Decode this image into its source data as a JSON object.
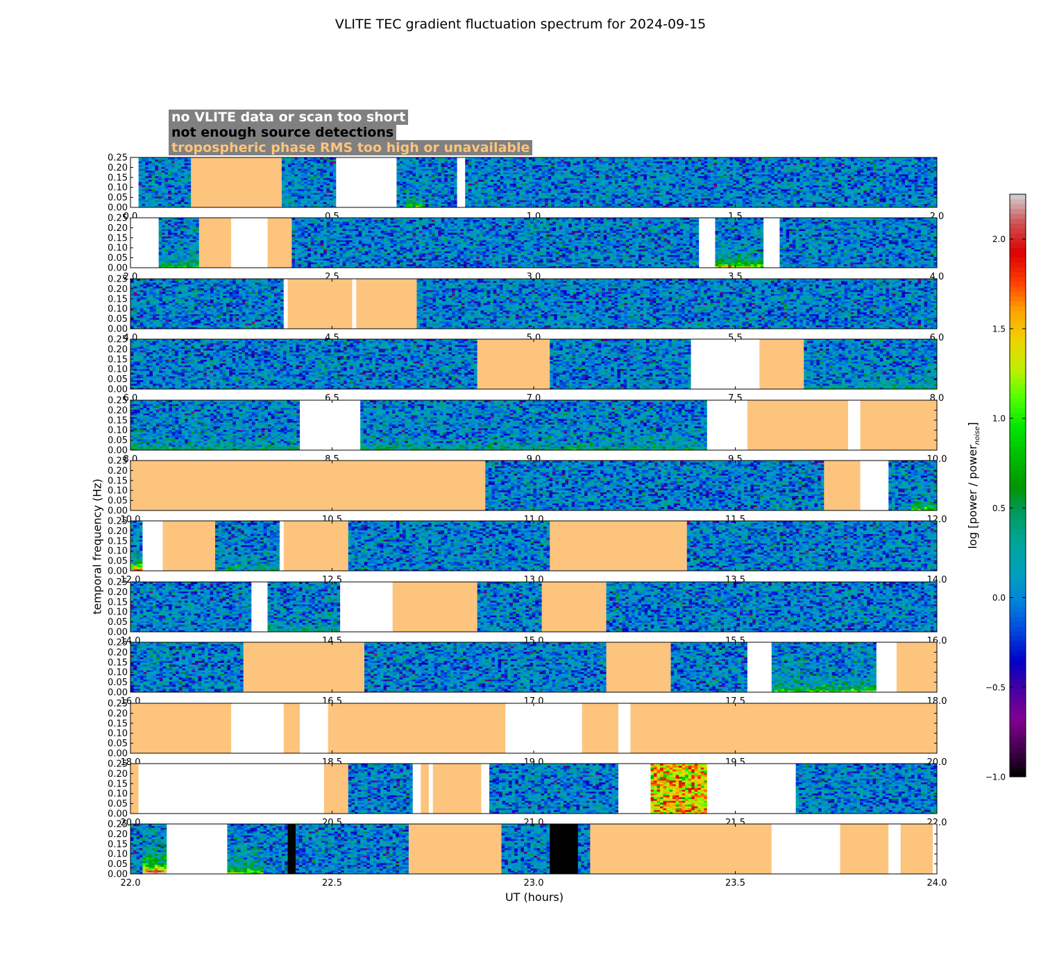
{
  "title": "VLITE TEC gradient fluctuation spectrum for 2024-09-15",
  "legend": [
    {
      "text": "no VLITE data or scan too short",
      "color": "#ffffff"
    },
    {
      "text": "not enough source detections",
      "color": "#000000"
    },
    {
      "text": "tropospheric phase RMS too high or unavailable",
      "color": "#fdc47d"
    }
  ],
  "colors": {
    "troposphere_flag": "#fdc47d",
    "no_data": "#ffffff",
    "few_detections": "#000000",
    "legend_box": "#808080"
  },
  "chart_data": {
    "type": "heatmap",
    "xlabel": "UT (hours)",
    "ylabel": "temporal frequency (Hz)",
    "colorbar_label": "log [power / power",
    "colorbar_subscript": "noise",
    "colorbar_suffix": "]",
    "colorbar_range": [
      -1.0,
      2.25
    ],
    "colorbar_ticks": [
      "−1.0",
      "−0.5",
      "0.0",
      "0.5",
      "1.0",
      "1.5",
      "2.0"
    ],
    "colorbar_tick_values": [
      -1.0,
      -0.5,
      0.0,
      0.5,
      1.0,
      1.5,
      2.0
    ],
    "ytick_labels": [
      "0.00",
      "0.05",
      "0.10",
      "0.15",
      "0.20",
      "0.25"
    ],
    "ytick_values": [
      0.0,
      0.05,
      0.1,
      0.15,
      0.2,
      0.25
    ],
    "ylim": [
      0,
      0.25
    ],
    "panels": [
      {
        "xlim": [
          0.0,
          2.0
        ],
        "xticks": [
          "0.0",
          "0.5",
          "1.0",
          "1.5",
          "2.0"
        ],
        "segments": [
          {
            "s": 0.0,
            "e": 0.02,
            "t": "white"
          },
          {
            "s": 0.02,
            "e": 0.15,
            "t": "data"
          },
          {
            "s": 0.15,
            "e": 0.375,
            "t": "tropo"
          },
          {
            "s": 0.375,
            "e": 0.51,
            "t": "data"
          },
          {
            "s": 0.51,
            "e": 0.66,
            "t": "white"
          },
          {
            "s": 0.66,
            "e": 0.81,
            "t": "data",
            "hot": 0.7,
            "hotAt": [
              0.68,
              0.73
            ]
          },
          {
            "s": 0.81,
            "e": 0.83,
            "t": "white"
          },
          {
            "s": 0.83,
            "e": 2.0,
            "t": "data"
          }
        ]
      },
      {
        "xlim": [
          2.0,
          4.0
        ],
        "xticks": [
          "2.0",
          "2.5",
          "3.0",
          "3.5",
          "4.0"
        ],
        "segments": [
          {
            "s": 2.0,
            "e": 2.07,
            "t": "white"
          },
          {
            "s": 2.07,
            "e": 2.17,
            "t": "data",
            "hot": 0.6
          },
          {
            "s": 2.17,
            "e": 2.25,
            "t": "tropo"
          },
          {
            "s": 2.25,
            "e": 2.34,
            "t": "white"
          },
          {
            "s": 2.34,
            "e": 2.4,
            "t": "tropo"
          },
          {
            "s": 2.4,
            "e": 3.41,
            "t": "data"
          },
          {
            "s": 3.41,
            "e": 3.45,
            "t": "white"
          },
          {
            "s": 3.45,
            "e": 3.57,
            "t": "data",
            "hot": 1.0
          },
          {
            "s": 3.57,
            "e": 3.61,
            "t": "white"
          },
          {
            "s": 3.61,
            "e": 4.0,
            "t": "data"
          }
        ]
      },
      {
        "xlim": [
          4.0,
          6.0
        ],
        "xticks": [
          "4.0",
          "4.5",
          "5.0",
          "5.5",
          "6.0"
        ],
        "segments": [
          {
            "s": 4.0,
            "e": 4.38,
            "t": "data"
          },
          {
            "s": 4.38,
            "e": 4.39,
            "t": "white"
          },
          {
            "s": 4.39,
            "e": 4.55,
            "t": "tropo"
          },
          {
            "s": 4.55,
            "e": 4.56,
            "t": "white"
          },
          {
            "s": 4.56,
            "e": 4.71,
            "t": "tropo"
          },
          {
            "s": 4.71,
            "e": 6.0,
            "t": "data"
          }
        ]
      },
      {
        "xlim": [
          6.0,
          8.0
        ],
        "xticks": [
          "6.0",
          "6.5",
          "7.0",
          "7.5",
          "8.0"
        ],
        "segments": [
          {
            "s": 6.0,
            "e": 6.86,
            "t": "data"
          },
          {
            "s": 6.86,
            "e": 7.04,
            "t": "tropo"
          },
          {
            "s": 7.04,
            "e": 7.39,
            "t": "data"
          },
          {
            "s": 7.39,
            "e": 7.56,
            "t": "white"
          },
          {
            "s": 7.56,
            "e": 7.67,
            "t": "tropo"
          },
          {
            "s": 7.67,
            "e": 8.0,
            "t": "data",
            "hot": 0.3
          }
        ]
      },
      {
        "xlim": [
          8.0,
          10.0
        ],
        "xticks": [
          "8.0",
          "8.5",
          "9.0",
          "9.5",
          "10.0"
        ],
        "segments": [
          {
            "s": 8.0,
            "e": 8.42,
            "t": "data",
            "hot": 0.4
          },
          {
            "s": 8.42,
            "e": 8.57,
            "t": "white"
          },
          {
            "s": 8.57,
            "e": 9.43,
            "t": "data",
            "hot": 0.35
          },
          {
            "s": 9.43,
            "e": 9.53,
            "t": "white"
          },
          {
            "s": 9.53,
            "e": 9.78,
            "t": "tropo"
          },
          {
            "s": 9.78,
            "e": 9.81,
            "t": "white"
          },
          {
            "s": 9.81,
            "e": 10.0,
            "t": "tropo"
          }
        ]
      },
      {
        "xlim": [
          10.0,
          12.0
        ],
        "xticks": [
          "10.0",
          "10.5",
          "11.0",
          "11.5",
          "12.0"
        ],
        "segments": [
          {
            "s": 10.0,
            "e": 10.88,
            "t": "tropo"
          },
          {
            "s": 10.88,
            "e": 11.72,
            "t": "data"
          },
          {
            "s": 11.72,
            "e": 11.81,
            "t": "tropo"
          },
          {
            "s": 11.81,
            "e": 11.88,
            "t": "white"
          },
          {
            "s": 11.88,
            "e": 12.0,
            "t": "data",
            "hot": 0.8,
            "hotAt": [
              11.94,
              12.0
            ]
          }
        ]
      },
      {
        "xlim": [
          12.0,
          14.0
        ],
        "xticks": [
          "12.0",
          "12.5",
          "13.0",
          "13.5",
          "14.0"
        ],
        "segments": [
          {
            "s": 12.0,
            "e": 12.03,
            "t": "data",
            "hot": 1.6
          },
          {
            "s": 12.03,
            "e": 12.08,
            "t": "white"
          },
          {
            "s": 12.08,
            "e": 12.21,
            "t": "tropo"
          },
          {
            "s": 12.21,
            "e": 12.37,
            "t": "data",
            "hot": 0.3
          },
          {
            "s": 12.37,
            "e": 12.38,
            "t": "white"
          },
          {
            "s": 12.38,
            "e": 12.54,
            "t": "tropo"
          },
          {
            "s": 12.54,
            "e": 13.04,
            "t": "data"
          },
          {
            "s": 13.04,
            "e": 13.38,
            "t": "tropo"
          },
          {
            "s": 13.38,
            "e": 14.0,
            "t": "data"
          }
        ]
      },
      {
        "xlim": [
          14.0,
          16.0
        ],
        "xticks": [
          "14.0",
          "14.5",
          "15.0",
          "15.5",
          "16.0"
        ],
        "segments": [
          {
            "s": 14.0,
            "e": 14.3,
            "t": "data"
          },
          {
            "s": 14.3,
            "e": 14.34,
            "t": "white"
          },
          {
            "s": 14.34,
            "e": 14.52,
            "t": "data",
            "hot": 0.3
          },
          {
            "s": 14.52,
            "e": 14.65,
            "t": "white"
          },
          {
            "s": 14.65,
            "e": 14.86,
            "t": "tropo"
          },
          {
            "s": 14.86,
            "e": 15.02,
            "t": "data"
          },
          {
            "s": 15.02,
            "e": 15.18,
            "t": "tropo"
          },
          {
            "s": 15.18,
            "e": 16.0,
            "t": "data"
          }
        ]
      },
      {
        "xlim": [
          16.0,
          18.0
        ],
        "xticks": [
          "16.0",
          "16.5",
          "17.0",
          "17.5",
          "18.0"
        ],
        "segments": [
          {
            "s": 16.0,
            "e": 16.28,
            "t": "data"
          },
          {
            "s": 16.28,
            "e": 16.58,
            "t": "tropo"
          },
          {
            "s": 16.58,
            "e": 17.18,
            "t": "data"
          },
          {
            "s": 17.18,
            "e": 17.34,
            "t": "tropo"
          },
          {
            "s": 17.34,
            "e": 17.53,
            "t": "data"
          },
          {
            "s": 17.53,
            "e": 17.59,
            "t": "white"
          },
          {
            "s": 17.59,
            "e": 17.85,
            "t": "data",
            "hot": 0.8
          },
          {
            "s": 17.85,
            "e": 17.9,
            "t": "white"
          },
          {
            "s": 17.9,
            "e": 18.0,
            "t": "tropo"
          }
        ]
      },
      {
        "xlim": [
          18.0,
          20.0
        ],
        "xticks": [
          "18.0",
          "18.5",
          "19.0",
          "19.5",
          "20.0"
        ],
        "segments": [
          {
            "s": 18.0,
            "e": 18.25,
            "t": "tropo"
          },
          {
            "s": 18.25,
            "e": 18.38,
            "t": "white"
          },
          {
            "s": 18.38,
            "e": 18.42,
            "t": "tropo"
          },
          {
            "s": 18.42,
            "e": 18.49,
            "t": "white"
          },
          {
            "s": 18.49,
            "e": 18.93,
            "t": "tropo"
          },
          {
            "s": 18.93,
            "e": 19.12,
            "t": "white"
          },
          {
            "s": 19.12,
            "e": 19.21,
            "t": "tropo"
          },
          {
            "s": 19.21,
            "e": 19.24,
            "t": "white"
          },
          {
            "s": 19.24,
            "e": 20.0,
            "t": "tropo"
          }
        ]
      },
      {
        "xlim": [
          20.0,
          22.0
        ],
        "xticks": [
          "20.0",
          "20.5",
          "21.0",
          "21.5",
          "22.0"
        ],
        "segments": [
          {
            "s": 20.0,
            "e": 20.02,
            "t": "tropo"
          },
          {
            "s": 20.02,
            "e": 20.48,
            "t": "white"
          },
          {
            "s": 20.48,
            "e": 20.54,
            "t": "tropo"
          },
          {
            "s": 20.54,
            "e": 20.7,
            "t": "data"
          },
          {
            "s": 20.7,
            "e": 20.72,
            "t": "white"
          },
          {
            "s": 20.72,
            "e": 20.74,
            "t": "tropo"
          },
          {
            "s": 20.74,
            "e": 20.75,
            "t": "white"
          },
          {
            "s": 20.75,
            "e": 20.87,
            "t": "tropo"
          },
          {
            "s": 20.87,
            "e": 20.89,
            "t": "white"
          },
          {
            "s": 20.89,
            "e": 21.21,
            "t": "data"
          },
          {
            "s": 21.21,
            "e": 21.29,
            "t": "white"
          },
          {
            "s": 21.29,
            "e": 21.43,
            "t": "storm"
          },
          {
            "s": 21.43,
            "e": 21.65,
            "t": "white"
          },
          {
            "s": 21.65,
            "e": 22.0,
            "t": "data"
          }
        ]
      },
      {
        "xlim": [
          22.0,
          24.0
        ],
        "xticks": [
          "22.0",
          "22.5",
          "23.0",
          "23.5",
          "24.0"
        ],
        "segments": [
          {
            "s": 22.0,
            "e": 22.03,
            "t": "data"
          },
          {
            "s": 22.03,
            "e": 22.09,
            "t": "data",
            "hot": 1.6,
            "warm": true
          },
          {
            "s": 22.09,
            "e": 22.24,
            "t": "white"
          },
          {
            "s": 22.24,
            "e": 22.33,
            "t": "data",
            "hot": 0.9
          },
          {
            "s": 22.33,
            "e": 22.39,
            "t": "data"
          },
          {
            "s": 22.39,
            "e": 22.41,
            "t": "black"
          },
          {
            "s": 22.41,
            "e": 22.69,
            "t": "data"
          },
          {
            "s": 22.69,
            "e": 22.92,
            "t": "tropo"
          },
          {
            "s": 22.92,
            "e": 23.04,
            "t": "data"
          },
          {
            "s": 23.04,
            "e": 23.11,
            "t": "black"
          },
          {
            "s": 23.11,
            "e": 23.14,
            "t": "data"
          },
          {
            "s": 23.14,
            "e": 23.59,
            "t": "tropo"
          },
          {
            "s": 23.59,
            "e": 23.76,
            "t": "white"
          },
          {
            "s": 23.76,
            "e": 23.88,
            "t": "tropo"
          },
          {
            "s": 23.88,
            "e": 23.91,
            "t": "white"
          },
          {
            "s": 23.91,
            "e": 23.99,
            "t": "tropo"
          },
          {
            "s": 23.99,
            "e": 24.0,
            "t": "white"
          }
        ]
      }
    ]
  }
}
